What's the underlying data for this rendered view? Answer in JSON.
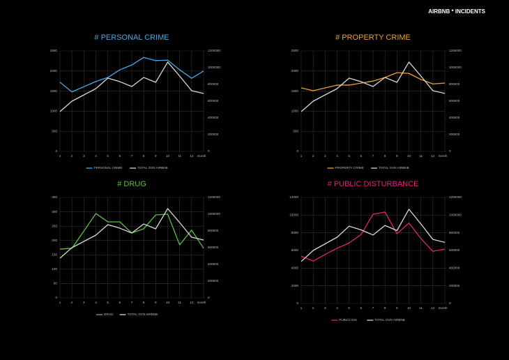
{
  "header": {
    "title": "AIRBNB * INCIDENTS"
  },
  "chart_data": [
    {
      "type": "line",
      "title": "# PERSONAL CRIME",
      "x_label": "month",
      "categories": [
        "1",
        "2",
        "3",
        "4",
        "5",
        "6",
        "7",
        "8",
        "9",
        "10",
        "11",
        "12",
        null
      ],
      "ylim": [
        0,
        2500
      ],
      "yticks": [
        0,
        500,
        1000,
        1500,
        2000,
        2500
      ],
      "y2lim": [
        0,
        1200000
      ],
      "y2ticks": [
        0,
        200000,
        400000,
        600000,
        800000,
        1000000,
        1200000
      ],
      "grid": true,
      "legend": "bottom",
      "series": [
        {
          "name": "PERSONAL CRIME",
          "color": "#4aa8e0",
          "values": [
            1720,
            1480,
            1610,
            1740,
            1840,
            2030,
            2150,
            2340,
            2260,
            2270,
            2030,
            1820,
            2000
          ]
        },
        {
          "name": "TOTAL OVN AIRBNB",
          "color": "#d9d9d9",
          "axis": "y2",
          "values": [
            475000,
            600000,
            675000,
            750000,
            875000,
            833000,
            775000,
            883000,
            825000,
            1067000,
            900000,
            725000,
            692000
          ]
        }
      ]
    },
    {
      "type": "line",
      "title": "# PROPERTY CRIME",
      "x_label": "month",
      "categories": [
        "1",
        "2",
        "3",
        "4",
        "5",
        "6",
        "7",
        "8",
        "9",
        "10",
        "11",
        "12",
        null
      ],
      "ylim": [
        0,
        2500
      ],
      "yticks": [
        0,
        500,
        1000,
        1500,
        2000,
        2500
      ],
      "y2lim": [
        0,
        1200000
      ],
      "y2ticks": [
        0,
        200000,
        400000,
        600000,
        800000,
        1000000,
        1200000
      ],
      "grid": true,
      "legend": "bottom",
      "series": [
        {
          "name": "PROPERTY CRIME",
          "color": "#e8a33a",
          "values": [
            1580,
            1510,
            1580,
            1650,
            1650,
            1700,
            1750,
            1840,
            1960,
            1940,
            1790,
            1680,
            1700
          ]
        },
        {
          "name": "TOTAL OVN AIRBNB",
          "color": "#d9d9d9",
          "axis": "y2",
          "values": [
            475000,
            600000,
            675000,
            750000,
            875000,
            833000,
            775000,
            883000,
            825000,
            1067000,
            900000,
            725000,
            692000
          ]
        }
      ]
    },
    {
      "type": "line",
      "title": "# DRUG",
      "x_label": "month",
      "categories": [
        "1",
        "2",
        "3",
        "4",
        "5",
        "6",
        "7",
        "8",
        "9",
        "10",
        "11",
        "12",
        null
      ],
      "ylim": [
        0,
        350
      ],
      "yticks": [
        0,
        50,
        100,
        150,
        200,
        250,
        300,
        350
      ],
      "y2lim": [
        0,
        1200000
      ],
      "y2ticks": [
        0,
        200000,
        400000,
        600000,
        800000,
        1000000,
        1200000
      ],
      "grid": true,
      "legend": "bottom",
      "series": [
        {
          "name": "DRUG",
          "color": "#5cbf4a",
          "values": [
            170,
            173,
            233,
            294,
            265,
            265,
            226,
            241,
            289,
            292,
            185,
            236,
            173
          ]
        },
        {
          "name": "TOTAL OVN AIRBNB",
          "color": "#d9d9d9",
          "axis": "y2",
          "values": [
            475000,
            600000,
            675000,
            750000,
            875000,
            833000,
            775000,
            883000,
            825000,
            1067000,
            900000,
            725000,
            692000
          ]
        }
      ]
    },
    {
      "type": "line",
      "title": "# PUBLIC DISTURBANCE",
      "x_label": "month",
      "categories": [
        "1",
        "2",
        "3",
        "4",
        "5",
        "6",
        "7",
        "8",
        "9",
        "10",
        "11",
        "12",
        null
      ],
      "ylim": [
        0,
        12000
      ],
      "yticks": [
        0,
        2000,
        4000,
        6000,
        8000,
        10000,
        12000
      ],
      "y2lim": [
        0,
        1200000
      ],
      "y2ticks": [
        0,
        200000,
        400000,
        600000,
        800000,
        1000000,
        1200000
      ],
      "grid": true,
      "legend": "bottom",
      "series": [
        {
          "name": "PUBLIC DIS",
          "color": "#e0237a",
          "values": [
            5350,
            4800,
            5550,
            6250,
            6850,
            7800,
            10100,
            10350,
            7900,
            9100,
            7350,
            5900,
            6150
          ]
        },
        {
          "name": "TOTAL OVN AIRBNB",
          "color": "#d9d9d9",
          "axis": "y2",
          "values": [
            475000,
            600000,
            675000,
            750000,
            875000,
            833000,
            775000,
            883000,
            825000,
            1067000,
            900000,
            725000,
            692000
          ]
        }
      ]
    }
  ]
}
